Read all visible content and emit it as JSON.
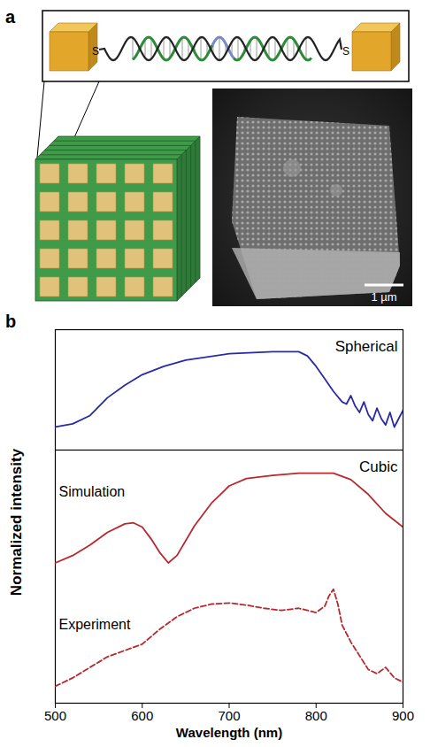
{
  "figure": {
    "panel_a": {
      "label": "a",
      "linker_ends": [
        "S",
        "S"
      ],
      "scale_bar": "1 µm"
    },
    "panel_b": {
      "label": "b",
      "ylabel": "Normalized intensity"
    }
  },
  "chart_data": [
    {
      "type": "line",
      "title": "Spherical",
      "color": "#2a2aa8",
      "x": [
        500,
        520,
        540,
        560,
        580,
        600,
        625,
        650,
        700,
        750,
        780,
        790,
        800,
        810,
        820,
        830,
        835,
        840,
        845,
        850,
        855,
        860,
        865,
        870,
        875,
        880,
        885,
        890,
        895,
        900
      ],
      "values": [
        0.22,
        0.25,
        0.33,
        0.5,
        0.62,
        0.72,
        0.8,
        0.86,
        0.92,
        0.94,
        0.94,
        0.9,
        0.8,
        0.68,
        0.56,
        0.46,
        0.44,
        0.52,
        0.42,
        0.36,
        0.46,
        0.34,
        0.28,
        0.4,
        0.3,
        0.24,
        0.36,
        0.22,
        0.3,
        0.38
      ],
      "xlim": [
        500,
        900
      ],
      "ylim": [
        0,
        1.15
      ],
      "tick_labels": false
    },
    {
      "type": "line",
      "title": "Cubic",
      "xlabel": "Wavelength (nm)",
      "xlim": [
        500,
        900
      ],
      "xticks": [
        500,
        600,
        700,
        800,
        900
      ],
      "ylim": [
        0,
        2.4
      ],
      "tick_labels": "x",
      "series": [
        {
          "name": "Simulation",
          "color": "#b8282e",
          "line_style": "solid",
          "x": [
            500,
            520,
            540,
            560,
            580,
            590,
            600,
            610,
            620,
            630,
            640,
            660,
            680,
            700,
            720,
            750,
            780,
            820,
            840,
            860,
            880,
            900
          ],
          "values": [
            1.33,
            1.4,
            1.5,
            1.62,
            1.7,
            1.71,
            1.67,
            1.56,
            1.43,
            1.33,
            1.4,
            1.68,
            1.9,
            2.06,
            2.13,
            2.16,
            2.18,
            2.18,
            2.12,
            1.98,
            1.8,
            1.67
          ]
        },
        {
          "name": "Experiment",
          "color": "#b8282e",
          "line_style": "dashed",
          "x": [
            500,
            520,
            540,
            560,
            580,
            600,
            620,
            640,
            660,
            680,
            700,
            720,
            740,
            760,
            780,
            800,
            810,
            815,
            820,
            825,
            830,
            840,
            850,
            860,
            870,
            880,
            890,
            900
          ],
          "values": [
            0.16,
            0.24,
            0.34,
            0.44,
            0.5,
            0.56,
            0.7,
            0.82,
            0.9,
            0.94,
            0.95,
            0.93,
            0.9,
            0.88,
            0.9,
            0.86,
            0.92,
            1.02,
            1.08,
            0.94,
            0.74,
            0.58,
            0.45,
            0.32,
            0.28,
            0.34,
            0.24,
            0.2
          ]
        }
      ]
    }
  ]
}
